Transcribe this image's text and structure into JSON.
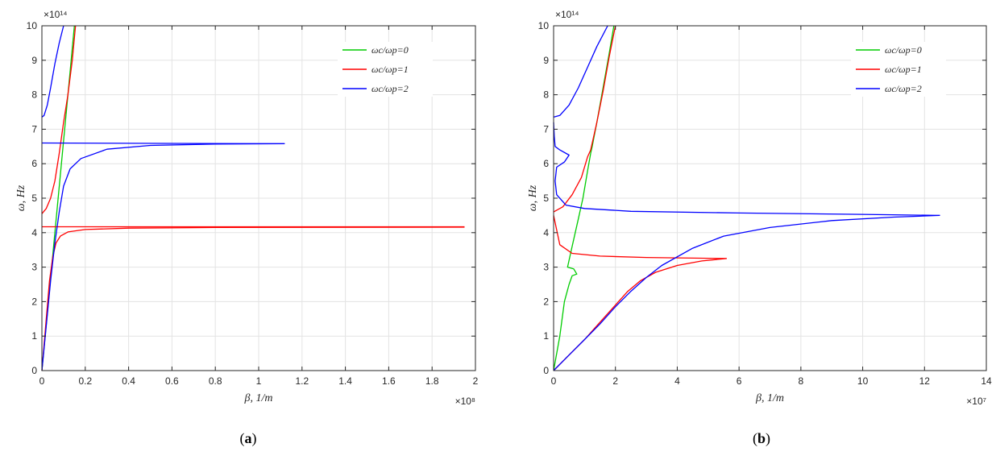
{
  "chart_data": [
    {
      "type": "line",
      "caption_open": "(",
      "caption_letter": "a",
      "caption_close": ")",
      "xlabel": "β, 1/m",
      "ylabel": "ω, Hz",
      "x_exponent": "×10⁸",
      "y_exponent": "×10¹⁴",
      "xlim": [
        0,
        2
      ],
      "ylim": [
        0,
        10
      ],
      "xticks": [
        "0",
        "0.2",
        "0.4",
        "0.6",
        "0.8",
        "1",
        "1.2",
        "1.4",
        "1.6",
        "1.8",
        "2"
      ],
      "yticks": [
        "0",
        "1",
        "2",
        "3",
        "4",
        "5",
        "6",
        "7",
        "8",
        "9",
        "10"
      ],
      "grid": true,
      "legend_position": "top-right",
      "series": [
        {
          "name": "ωc/ωp=0",
          "color": "#00cc00",
          "segments": [
            [
              [
                0,
                0
              ],
              [
                0.03,
                2
              ],
              [
                0.06,
                4
              ],
              [
                0.09,
                6
              ],
              [
                0.12,
                8
              ],
              [
                0.15,
                10
              ]
            ]
          ]
        },
        {
          "name": "ωc/ωp=1",
          "color": "#ff0000",
          "segments": [
            [
              [
                0,
                4.17
              ],
              [
                1.95,
                4.17
              ]
            ],
            [
              [
                0,
                0
              ],
              [
                0.02,
                1.5
              ],
              [
                0.035,
                2.6
              ],
              [
                0.05,
                3.3
              ],
              [
                0.065,
                3.7
              ],
              [
                0.085,
                3.9
              ],
              [
                0.12,
                4.02
              ],
              [
                0.2,
                4.09
              ],
              [
                0.4,
                4.13
              ],
              [
                0.8,
                4.15
              ],
              [
                1.95,
                4.16
              ]
            ],
            [
              [
                0,
                4.55
              ],
              [
                0.02,
                4.7
              ],
              [
                0.04,
                5.0
              ],
              [
                0.06,
                5.5
              ],
              [
                0.08,
                6.3
              ],
              [
                0.1,
                7.2
              ],
              [
                0.12,
                8.0
              ],
              [
                0.14,
                9.0
              ],
              [
                0.155,
                10
              ]
            ]
          ]
        },
        {
          "name": "ωc/ωp=2",
          "color": "#0000ff",
          "segments": [
            [
              [
                0,
                6.6
              ],
              [
                1.12,
                6.58
              ]
            ],
            [
              [
                0,
                0
              ],
              [
                0.02,
                1.3
              ],
              [
                0.04,
                2.6
              ],
              [
                0.06,
                3.7
              ],
              [
                0.08,
                4.6
              ],
              [
                0.1,
                5.35
              ],
              [
                0.13,
                5.85
              ],
              [
                0.18,
                6.15
              ],
              [
                0.3,
                6.42
              ],
              [
                0.5,
                6.53
              ],
              [
                0.8,
                6.57
              ],
              [
                1.12,
                6.58
              ]
            ],
            [
              [
                0,
                7.35
              ],
              [
                0.01,
                7.4
              ],
              [
                0.025,
                7.7
              ],
              [
                0.04,
                8.2
              ],
              [
                0.06,
                8.9
              ],
              [
                0.08,
                9.5
              ],
              [
                0.1,
                10
              ]
            ]
          ]
        }
      ]
    },
    {
      "type": "line",
      "caption_open": "(",
      "caption_letter": "b",
      "caption_close": ")",
      "xlabel": "β, 1/m",
      "ylabel": "ω, Hz",
      "x_exponent": "×10⁷",
      "y_exponent": "×10¹⁴",
      "xlim": [
        0,
        14
      ],
      "ylim": [
        0,
        10
      ],
      "xticks": [
        "0",
        "2",
        "4",
        "6",
        "8",
        "10",
        "12",
        "14"
      ],
      "yticks": [
        "0",
        "1",
        "2",
        "3",
        "4",
        "5",
        "6",
        "7",
        "8",
        "9",
        "10"
      ],
      "grid": true,
      "legend_position": "top-right",
      "series": [
        {
          "name": "ωc/ωp=0",
          "color": "#00cc00",
          "segments": [
            [
              [
                0,
                0
              ],
              [
                0.2,
                1.0
              ],
              [
                0.35,
                2.0
              ],
              [
                0.5,
                2.5
              ],
              [
                0.6,
                2.75
              ],
              [
                0.75,
                2.8
              ],
              [
                0.65,
                2.95
              ],
              [
                0.45,
                3.0
              ],
              [
                0.6,
                3.6
              ],
              [
                0.8,
                4.4
              ],
              [
                0.95,
                5.0
              ],
              [
                1.1,
                5.8
              ],
              [
                1.2,
                6.3
              ],
              [
                1.25,
                6.5
              ],
              [
                1.4,
                7.2
              ],
              [
                1.6,
                8.2
              ],
              [
                1.8,
                9.2
              ],
              [
                1.95,
                10
              ]
            ]
          ]
        },
        {
          "name": "ωc/ωp=1",
          "color": "#ff0000",
          "segments": [
            [
              [
                0,
                4.6
              ],
              [
                0.3,
                4.75
              ],
              [
                0.6,
                5.1
              ],
              [
                0.9,
                5.6
              ],
              [
                1.1,
                6.2
              ],
              [
                1.2,
                6.4
              ],
              [
                1.4,
                7.2
              ],
              [
                1.6,
                8.1
              ],
              [
                1.8,
                9.1
              ],
              [
                2.0,
                10
              ]
            ],
            [
              [
                0,
                4.5
              ],
              [
                0.2,
                3.65
              ],
              [
                0.6,
                3.4
              ],
              [
                1.5,
                3.32
              ],
              [
                3.0,
                3.28
              ],
              [
                5.6,
                3.25
              ]
            ],
            [
              [
                0,
                0
              ],
              [
                0.5,
                0.45
              ],
              [
                1.0,
                0.9
              ],
              [
                1.5,
                1.4
              ],
              [
                2.0,
                1.9
              ],
              [
                2.4,
                2.3
              ],
              [
                2.8,
                2.6
              ],
              [
                3.3,
                2.85
              ],
              [
                4.0,
                3.05
              ],
              [
                4.8,
                3.18
              ],
              [
                5.6,
                3.25
              ]
            ]
          ]
        },
        {
          "name": "ωc/ωp=2",
          "color": "#0000ff",
          "segments": [
            [
              [
                0,
                7.35
              ],
              [
                0.2,
                7.4
              ],
              [
                0.5,
                7.7
              ],
              [
                0.8,
                8.2
              ],
              [
                1.1,
                8.8
              ],
              [
                1.4,
                9.4
              ],
              [
                1.75,
                10
              ]
            ],
            [
              [
                0,
                7.2
              ],
              [
                0.02,
                6.8
              ],
              [
                0.05,
                6.5
              ],
              [
                0.2,
                6.4
              ],
              [
                0.5,
                6.25
              ],
              [
                0.35,
                6.05
              ],
              [
                0.1,
                5.9
              ],
              [
                0.05,
                5.5
              ],
              [
                0.1,
                5.1
              ],
              [
                0.4,
                4.8
              ],
              [
                1.0,
                4.7
              ],
              [
                2.5,
                4.62
              ],
              [
                6,
                4.57
              ],
              [
                10,
                4.53
              ],
              [
                12.5,
                4.5
              ]
            ],
            [
              [
                0,
                0
              ],
              [
                0.5,
                0.45
              ],
              [
                1.0,
                0.9
              ],
              [
                1.5,
                1.35
              ],
              [
                2.0,
                1.85
              ],
              [
                2.5,
                2.3
              ],
              [
                3.0,
                2.7
              ],
              [
                3.5,
                3.05
              ],
              [
                4.5,
                3.55
              ],
              [
                5.5,
                3.9
              ],
              [
                7,
                4.15
              ],
              [
                9,
                4.35
              ],
              [
                11,
                4.45
              ],
              [
                12.5,
                4.5
              ]
            ]
          ]
        }
      ]
    }
  ]
}
